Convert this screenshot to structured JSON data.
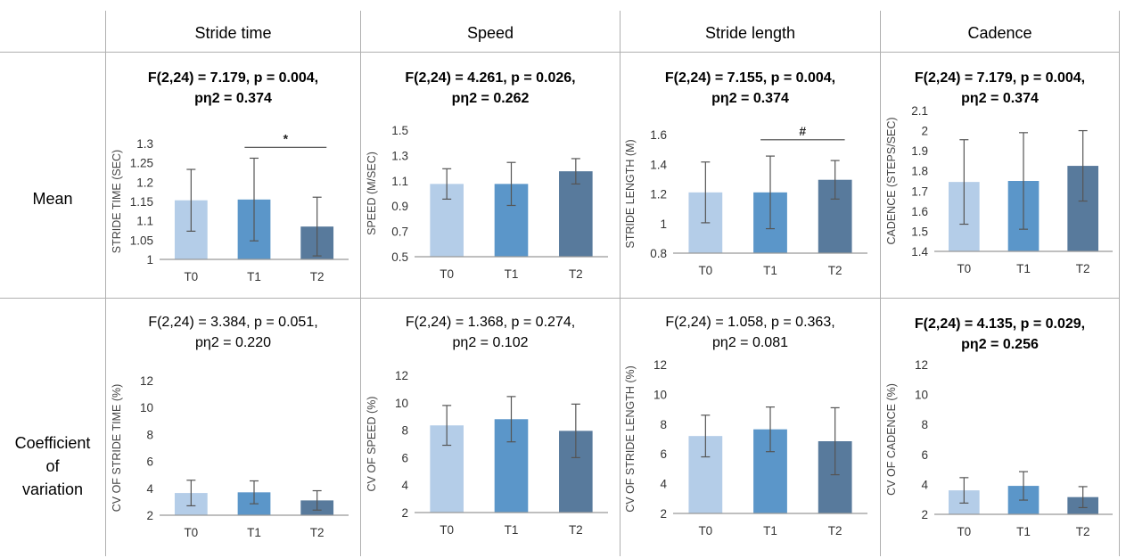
{
  "columns": [
    "Stride time",
    "Speed",
    "Stride length",
    "Cadence"
  ],
  "rows": [
    {
      "label_lines": [
        "Mean"
      ]
    },
    {
      "label_lines": [
        "Coefficient",
        "of",
        "variation"
      ]
    }
  ],
  "colors": {
    "T0": "#b4cde8",
    "T1": "#5b96c9",
    "T2": "#587a9c",
    "axis": "#999999",
    "error": "#555555"
  },
  "chart_data": [
    {
      "type": "bar",
      "row": 0,
      "col": 0,
      "stats_lines": [
        "F(2,24) = 7.179, p = 0.004,",
        "pη2  = 0.374"
      ],
      "stats_bold": true,
      "ylabel": "STRIDE TIME (SEC)",
      "ylim": [
        1,
        1.3
      ],
      "yticks": [
        1,
        1.05,
        1.1,
        1.15,
        1.2,
        1.25,
        1.3
      ],
      "ytick_labels": [
        "1",
        "1.05",
        "1.1",
        "1.15",
        "1.2",
        "1.25",
        "1.3"
      ],
      "categories": [
        "T0",
        "T1",
        "T2"
      ],
      "values": [
        1.153,
        1.155,
        1.085
      ],
      "errors": [
        0.08,
        0.107,
        0.076
      ],
      "annotation": {
        "text": "*",
        "from": 1,
        "to": 2,
        "y": 1.29
      }
    },
    {
      "type": "bar",
      "row": 0,
      "col": 1,
      "stats_lines": [
        "F(2,24) = 4.261, p = 0.026,",
        "pη2  = 0.262"
      ],
      "stats_bold": true,
      "ylabel": "SPEED (M/SEC)",
      "ylim": [
        0.5,
        1.5
      ],
      "yticks": [
        0.5,
        0.7,
        0.9,
        1.1,
        1.3,
        1.5
      ],
      "ytick_labels": [
        "0.5",
        "0.7",
        "0.9",
        "1.1",
        "1.3",
        "1.5"
      ],
      "categories": [
        "T0",
        "T1",
        "T2"
      ],
      "values": [
        1.075,
        1.075,
        1.175
      ],
      "errors": [
        0.12,
        0.17,
        0.1
      ]
    },
    {
      "type": "bar",
      "row": 0,
      "col": 2,
      "stats_lines": [
        "F(2,24) = 7.155, p = 0.004,",
        "pη2  = 0.374"
      ],
      "stats_bold": true,
      "ylabel": "STRIDE LENGTH (M)",
      "ylim": [
        0.8,
        1.6
      ],
      "yticks": [
        0.8,
        1,
        1.2,
        1.4,
        1.6
      ],
      "ytick_labels": [
        "0.8",
        "1",
        "1.2",
        "1.4",
        "1.6"
      ],
      "categories": [
        "T0",
        "T1",
        "T2"
      ],
      "values": [
        1.21,
        1.21,
        1.295
      ],
      "errors": [
        0.205,
        0.245,
        0.13
      ],
      "annotation": {
        "text": "#",
        "from": 1,
        "to": 2,
        "y": 1.565
      }
    },
    {
      "type": "bar",
      "row": 0,
      "col": 3,
      "stats_lines": [
        "F(2,24) = 7.179, p = 0.004,",
        "pη2  = 0.374"
      ],
      "stats_bold": true,
      "ylabel": "CADENCE (STEPS/SEC)",
      "ylim": [
        1.4,
        2.1
      ],
      "yticks": [
        1.4,
        1.5,
        1.6,
        1.7,
        1.8,
        1.9,
        2,
        2.1
      ],
      "ytick_labels": [
        "1.4",
        "1.5",
        "1.6",
        "1.7",
        "1.8",
        "1.9",
        "2",
        "2.1"
      ],
      "categories": [
        "T0",
        "T1",
        "T2"
      ],
      "values": [
        1.745,
        1.75,
        1.825
      ],
      "errors": [
        0.21,
        0.24,
        0.175
      ]
    },
    {
      "type": "bar",
      "row": 1,
      "col": 0,
      "stats_lines": [
        "F(2,24) = 3.384, p = 0.051,",
        "pη2  = 0.220"
      ],
      "stats_bold": false,
      "ylabel": "CV OF STRIDE TIME (%)",
      "ylim": [
        2,
        12
      ],
      "yticks": [
        2,
        4,
        6,
        8,
        10,
        12
      ],
      "ytick_labels": [
        "2",
        "4",
        "6",
        "8",
        "10",
        "12"
      ],
      "categories": [
        "T0",
        "T1",
        "T2"
      ],
      "values": [
        3.65,
        3.7,
        3.1
      ],
      "errors": [
        0.95,
        0.85,
        0.72
      ]
    },
    {
      "type": "bar",
      "row": 1,
      "col": 1,
      "stats_lines": [
        "F(2,24) = 1.368, p = 0.274,",
        "pη2  = 0.102"
      ],
      "stats_bold": false,
      "ylabel": "CV OF SPEED (%)",
      "ylim": [
        2,
        12
      ],
      "yticks": [
        2,
        4,
        6,
        8,
        10,
        12
      ],
      "ytick_labels": [
        "2",
        "4",
        "6",
        "8",
        "10",
        "12"
      ],
      "categories": [
        "T0",
        "T1",
        "T2"
      ],
      "values": [
        8.35,
        8.8,
        7.95
      ],
      "errors": [
        1.45,
        1.65,
        1.95
      ]
    },
    {
      "type": "bar",
      "row": 1,
      "col": 2,
      "stats_lines": [
        "F(2,24) = 1.058, p = 0.363,",
        "pη2  = 0.081"
      ],
      "stats_bold": false,
      "ylabel": "CV OF STRIDE LENGTH (%)",
      "ylim": [
        2,
        12
      ],
      "yticks": [
        2,
        4,
        6,
        8,
        10,
        12
      ],
      "ytick_labels": [
        "2",
        "4",
        "6",
        "8",
        "10",
        "12"
      ],
      "categories": [
        "T0",
        "T1",
        "T2"
      ],
      "values": [
        7.2,
        7.65,
        6.85
      ],
      "errors": [
        1.4,
        1.5,
        2.25
      ]
    },
    {
      "type": "bar",
      "row": 1,
      "col": 3,
      "stats_lines": [
        "F(2,24) = 4.135, p = 0.029,",
        "pη2  = 0.256"
      ],
      "stats_bold": true,
      "ylabel": "CV OF CADENCE (%)",
      "ylim": [
        2,
        12
      ],
      "yticks": [
        2,
        4,
        6,
        8,
        10,
        12
      ],
      "ytick_labels": [
        "2",
        "4",
        "6",
        "8",
        "10",
        "12"
      ],
      "categories": [
        "T0",
        "T1",
        "T2"
      ],
      "values": [
        3.6,
        3.9,
        3.15
      ],
      "errors": [
        0.85,
        0.95,
        0.7
      ]
    }
  ]
}
